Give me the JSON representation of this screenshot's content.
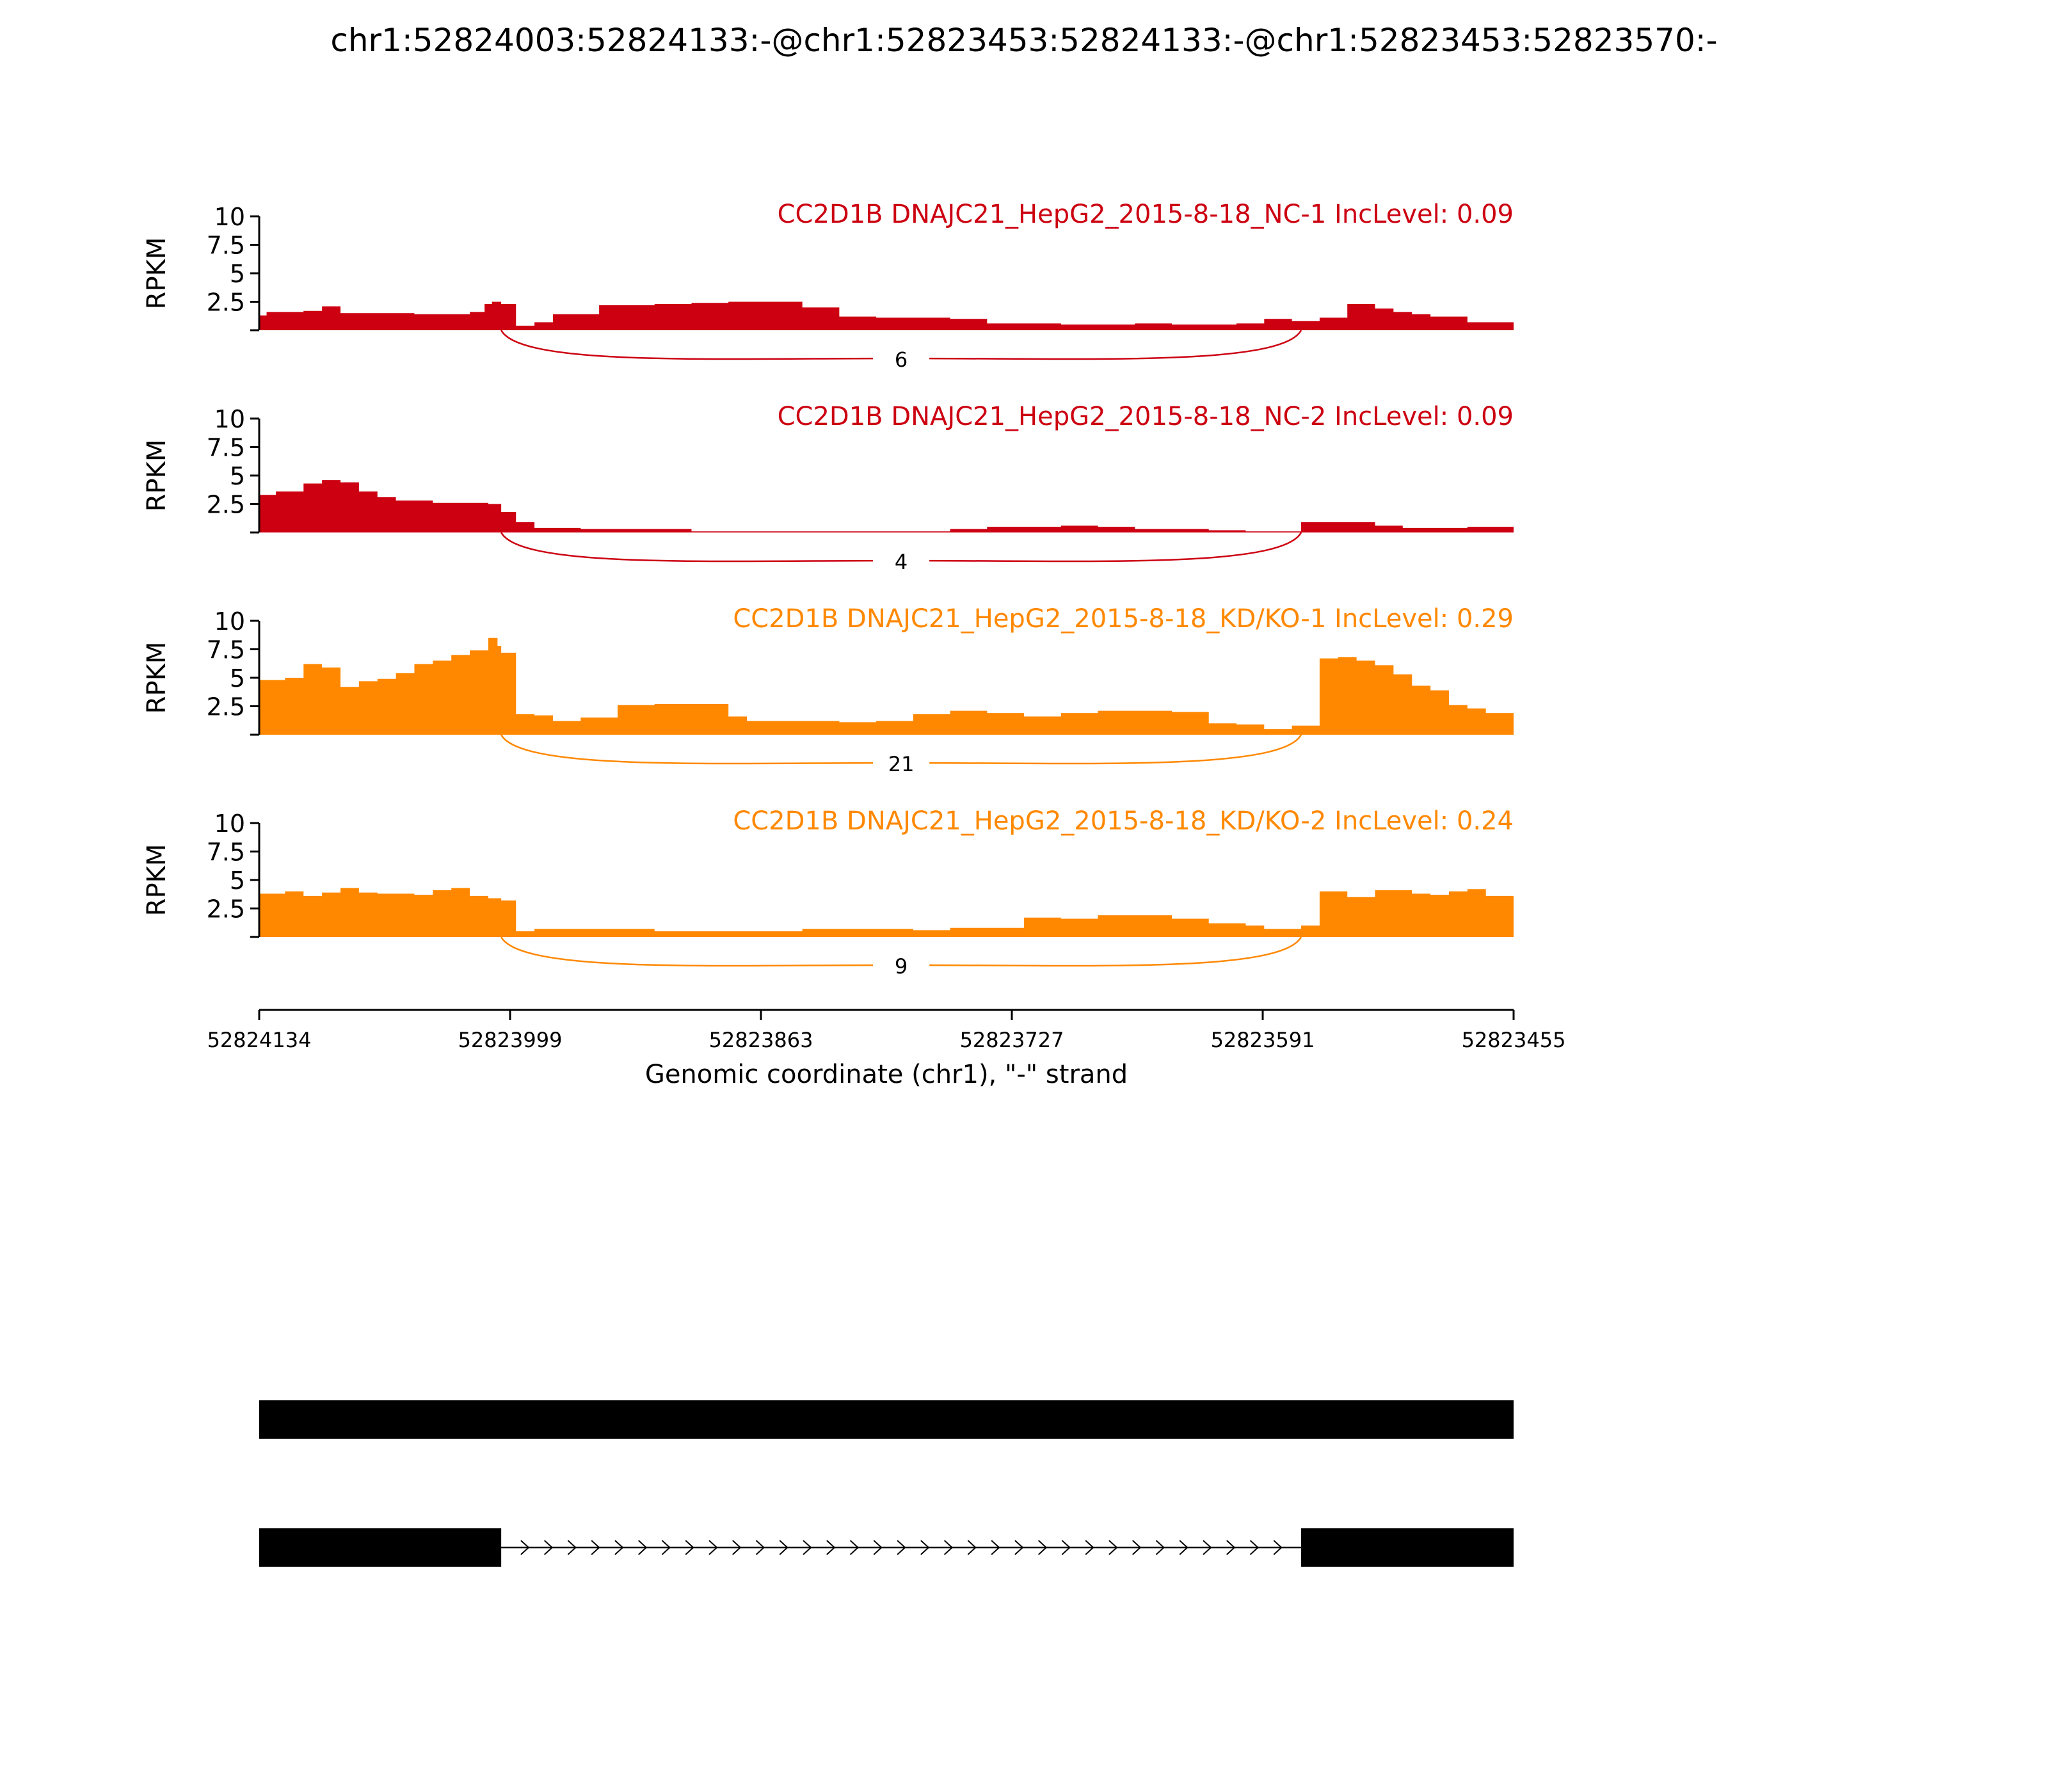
{
  "title": "chr1:52824003:52824133:-@chr1:52823453:52824133:-@chr1:52823453:52823570:-",
  "colors": {
    "nc": "#cc0011",
    "kd": "#ff8800",
    "axis": "#000000",
    "gene": "#000000"
  },
  "chart_data": {
    "type": "area",
    "xlabel": "Genomic coordinate (chr1), \"-\" strand",
    "ylabel": "RPKM",
    "xlim": [
      52824134,
      52823455
    ],
    "ylim": [
      0,
      10
    ],
    "yticks": [
      "2.5",
      "5",
      "7.5",
      "10"
    ],
    "xticks": [
      "52824134",
      "52823999",
      "52823863",
      "52823727",
      "52823591",
      "52823455"
    ],
    "series": [
      {
        "name": "CC2D1B DNAJC21_HepG2_2015-8-18_NC-1 IncLevel: 0.09",
        "group": "nc",
        "junction_count": "6",
        "x": [
          52824134,
          52824130,
          52824110,
          52824100,
          52824090,
          52824070,
          52824050,
          52824020,
          52824012,
          52824008,
          52824003,
          52823995,
          52823985,
          52823975,
          52823950,
          52823920,
          52823900,
          52823880,
          52823860,
          52823840,
          52823820,
          52823800,
          52823780,
          52823760,
          52823740,
          52823720,
          52823700,
          52823680,
          52823660,
          52823640,
          52823620,
          52823605,
          52823590,
          52823575,
          52823570,
          52823560,
          52823545,
          52823530,
          52823520,
          52823510,
          52823500,
          52823480,
          52823455
        ],
        "y": [
          1.3,
          1.6,
          1.7,
          2.1,
          1.5,
          1.5,
          1.4,
          1.6,
          2.3,
          2.5,
          2.3,
          0.4,
          0.7,
          1.4,
          2.2,
          2.3,
          2.4,
          2.5,
          2.5,
          2.0,
          1.2,
          1.1,
          1.1,
          1.0,
          0.6,
          0.6,
          0.5,
          0.5,
          0.6,
          0.5,
          0.5,
          0.6,
          1.0,
          0.8,
          0.8,
          1.1,
          2.3,
          1.9,
          1.6,
          1.4,
          1.2,
          0.7,
          0.1
        ]
      },
      {
        "name": "CC2D1B DNAJC21_HepG2_2015-8-18_NC-2 IncLevel: 0.09",
        "group": "nc",
        "junction_count": "4",
        "x": [
          52824134,
          52824125,
          52824110,
          52824100,
          52824090,
          52824080,
          52824070,
          52824060,
          52824040,
          52824020,
          52824010,
          52824003,
          52823995,
          52823985,
          52823960,
          52823900,
          52823850,
          52823800,
          52823760,
          52823740,
          52823720,
          52823700,
          52823680,
          52823660,
          52823640,
          52823620,
          52823600,
          52823590,
          52823575,
          52823570,
          52823560,
          52823545,
          52823530,
          52823515,
          52823500,
          52823480,
          52823455
        ],
        "y": [
          3.3,
          3.6,
          4.3,
          4.6,
          4.4,
          3.6,
          3.1,
          2.8,
          2.6,
          2.6,
          2.5,
          1.8,
          0.9,
          0.4,
          0.3,
          0.1,
          0.1,
          0.1,
          0.3,
          0.5,
          0.5,
          0.6,
          0.5,
          0.3,
          0.3,
          0.2,
          0.1,
          0.1,
          0.1,
          0.9,
          0.9,
          0.9,
          0.6,
          0.4,
          0.4,
          0.5,
          0.4
        ]
      },
      {
        "name": "CC2D1B DNAJC21_HepG2_2015-8-18_KD/KO-1 IncLevel: 0.29",
        "group": "kd",
        "junction_count": "21",
        "x": [
          52824134,
          52824120,
          52824110,
          52824100,
          52824090,
          52824080,
          52824070,
          52824060,
          52824050,
          52824040,
          52824030,
          52824020,
          52824010,
          52824005,
          52824003,
          52823995,
          52823985,
          52823975,
          52823960,
          52823940,
          52823920,
          52823900,
          52823880,
          52823870,
          52823860,
          52823840,
          52823820,
          52823800,
          52823780,
          52823760,
          52823740,
          52823720,
          52823700,
          52823680,
          52823660,
          52823640,
          52823620,
          52823605,
          52823590,
          52823575,
          52823570,
          52823560,
          52823550,
          52823540,
          52823530,
          52823520,
          52823510,
          52823500,
          52823490,
          52823480,
          52823470,
          52823455
        ],
        "y": [
          4.8,
          5.0,
          6.2,
          5.9,
          4.2,
          4.7,
          4.9,
          5.4,
          6.2,
          6.5,
          7.0,
          7.4,
          8.5,
          7.8,
          7.2,
          1.8,
          1.7,
          1.2,
          1.5,
          2.6,
          2.7,
          2.7,
          1.6,
          1.2,
          1.2,
          1.2,
          1.1,
          1.2,
          1.8,
          2.1,
          1.9,
          1.6,
          1.9,
          2.1,
          2.1,
          2.0,
          1.0,
          0.9,
          0.5,
          0.8,
          0.8,
          6.7,
          6.8,
          6.5,
          6.1,
          5.3,
          4.3,
          3.9,
          2.6,
          2.3,
          1.9,
          1.1
        ]
      },
      {
        "name": "CC2D1B DNAJC21_HepG2_2015-8-18_KD/KO-2 IncLevel: 0.24",
        "group": "kd",
        "junction_count": "9",
        "x": [
          52824134,
          52824120,
          52824110,
          52824100,
          52824090,
          52824080,
          52824070,
          52824060,
          52824050,
          52824040,
          52824030,
          52824020,
          52824010,
          52824003,
          52823995,
          52823985,
          52823960,
          52823920,
          52823880,
          52823840,
          52823800,
          52823780,
          52823760,
          52823740,
          52823720,
          52823700,
          52823680,
          52823660,
          52823640,
          52823620,
          52823600,
          52823590,
          52823575,
          52823570,
          52823560,
          52823545,
          52823530,
          52823520,
          52823510,
          52823500,
          52823490,
          52823480,
          52823470,
          52823455
        ],
        "y": [
          3.8,
          4.0,
          3.6,
          3.9,
          4.3,
          3.9,
          3.8,
          3.8,
          3.7,
          4.1,
          4.3,
          3.6,
          3.4,
          3.2,
          0.5,
          0.7,
          0.7,
          0.5,
          0.5,
          0.7,
          0.7,
          0.6,
          0.8,
          0.8,
          1.7,
          1.6,
          1.9,
          1.9,
          1.6,
          1.2,
          1.0,
          0.7,
          0.7,
          1.0,
          4.0,
          3.5,
          4.1,
          4.1,
          3.8,
          3.7,
          4.0,
          4.2,
          3.6,
          3.0
        ]
      }
    ],
    "junction": {
      "start": 52824003,
      "end": 52823570
    },
    "gene_models": [
      {
        "exons": [
          [
            52824134,
            52823455
          ]
        ]
      },
      {
        "exons": [
          [
            52824134,
            52824003
          ],
          [
            52823570,
            52823455
          ]
        ],
        "intron": [
          52824003,
          52823570
        ],
        "strand_arrows": ">"
      }
    ]
  }
}
